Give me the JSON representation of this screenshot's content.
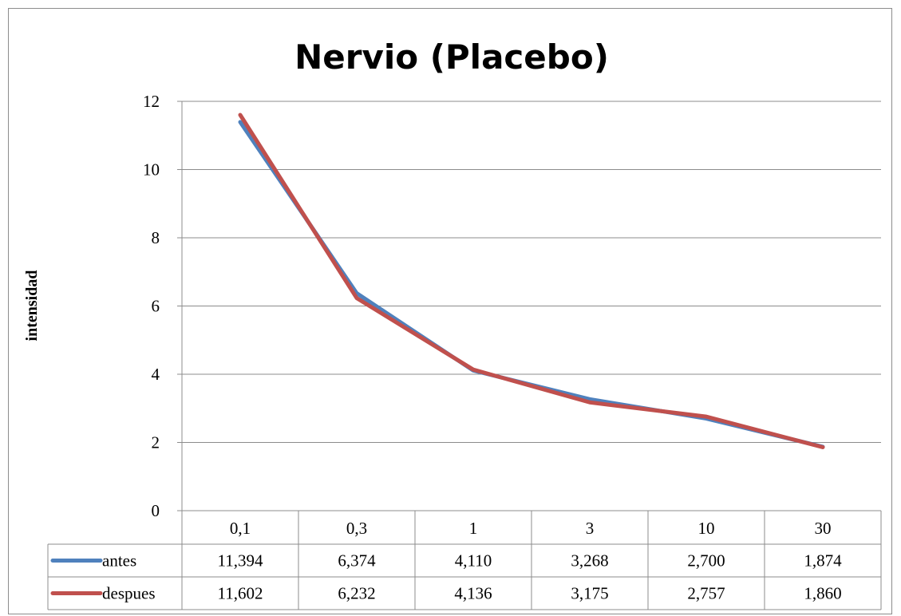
{
  "chart_data": {
    "type": "line",
    "title": "Nervio (Placebo)",
    "ylabel": "intensidad",
    "xlabel": "",
    "ylim": [
      0,
      12
    ],
    "yticks": [
      0,
      2,
      4,
      6,
      8,
      10,
      12
    ],
    "grid": true,
    "legend": "data-table-left",
    "categories": [
      "0,1",
      "0,3",
      "1",
      "3",
      "10",
      "30"
    ],
    "series": [
      {
        "name": "antes",
        "color": "#4f81bd",
        "values": [
          11.394,
          6.374,
          4.11,
          3.268,
          2.7,
          1.874
        ],
        "labels": [
          "11,394",
          "6,374",
          "4,110",
          "3,268",
          "2,700",
          "1,874"
        ]
      },
      {
        "name": "despues",
        "color": "#c0504d",
        "values": [
          11.602,
          6.232,
          4.136,
          3.175,
          2.757,
          1.86
        ],
        "labels": [
          "11,602",
          "6,232",
          "4,136",
          "3,175",
          "2,757",
          "1,860"
        ]
      }
    ]
  }
}
